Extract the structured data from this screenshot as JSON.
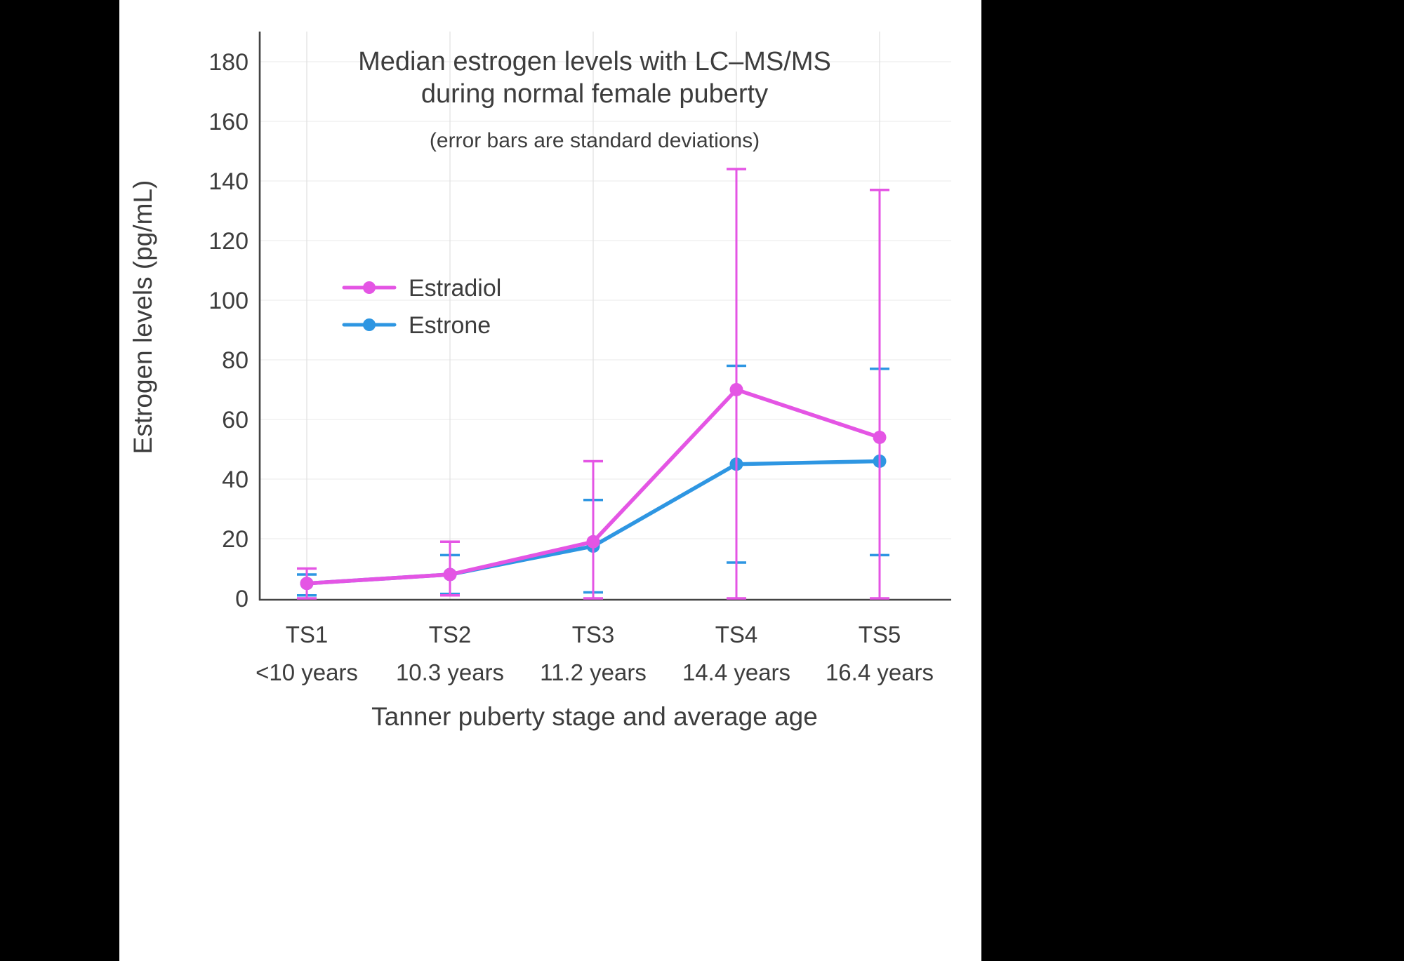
{
  "page": {
    "background": "#000000",
    "panel_background": "#ffffff",
    "text_color": "#3d3d3d",
    "axis_color": "#444444",
    "gridline_color_h": "#f0f0f0",
    "gridline_color_v": "#e3e3e3"
  },
  "chart_data": {
    "type": "line",
    "title_lines": [
      "Median estrogen levels with LC–MS/MS",
      "during normal female puberty"
    ],
    "subtitle": "(error bars are standard deviations)",
    "xlabel": "Tanner puberty stage and average age",
    "ylabel": "Estrogen levels (pg/mL)",
    "ylim": [
      0,
      190
    ],
    "yticks": [
      0,
      20,
      40,
      60,
      80,
      100,
      120,
      140,
      160,
      180
    ],
    "categories": [
      "TS1",
      "TS2",
      "TS3",
      "TS4",
      "TS5"
    ],
    "category_ages": [
      "<10 years",
      "10.3 years",
      "11.2 years",
      "14.4 years",
      "16.4 years"
    ],
    "grid": true,
    "legend": {
      "position": "inside-upper-left",
      "entries": [
        "Estradiol",
        "Estrone"
      ]
    },
    "error_bars": "standard deviations",
    "series": [
      {
        "name": "Estradiol",
        "color": "#e455e4",
        "values": [
          5,
          8,
          19,
          70,
          54
        ],
        "error_bar_top": [
          10,
          19,
          46,
          144,
          137
        ],
        "error_bar_bottom": [
          0,
          1,
          0,
          0,
          0
        ]
      },
      {
        "name": "Estrone",
        "color": "#2e96e2",
        "values": [
          5,
          8,
          17.5,
          45,
          46
        ],
        "error_bar_top": [
          8,
          14.5,
          33,
          78,
          77
        ],
        "error_bar_bottom": [
          1,
          1.5,
          2,
          12,
          14.5
        ]
      }
    ]
  }
}
